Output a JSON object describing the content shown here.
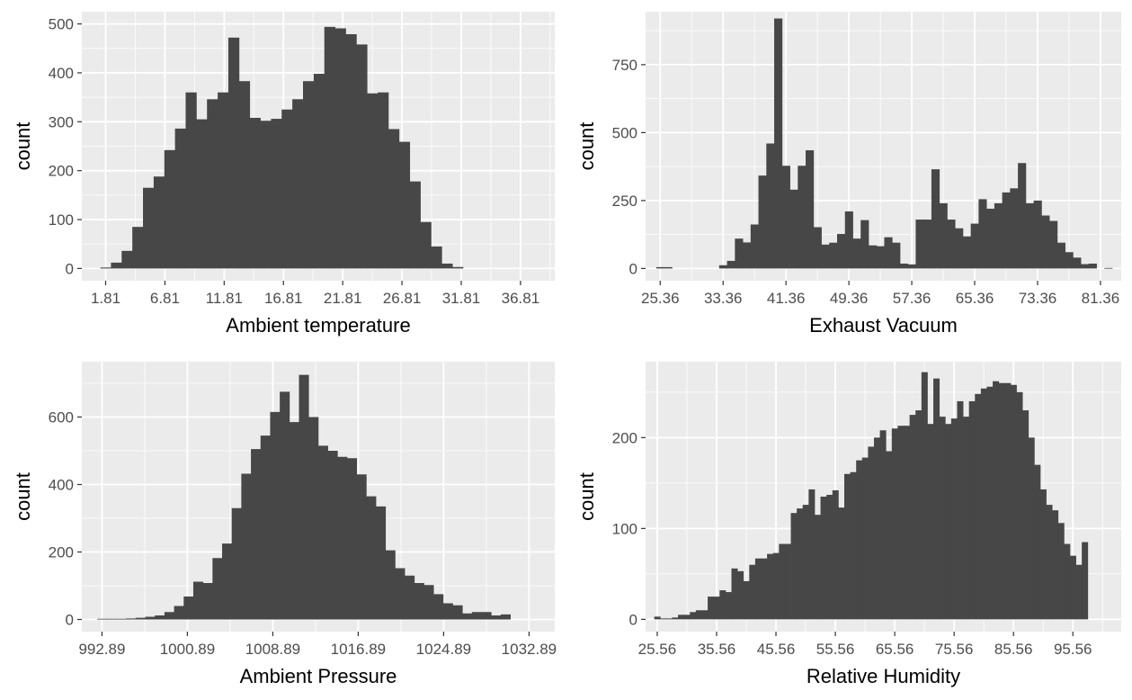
{
  "chart_data": [
    {
      "type": "bar",
      "xlabel": "Ambient temperature",
      "ylabel": "count",
      "xlim": [
        -0.2,
        39.7
      ],
      "ylim": [
        -25,
        525
      ],
      "x_ticks": [
        1.81,
        6.81,
        11.81,
        16.81,
        21.81,
        26.81,
        31.81,
        36.81
      ],
      "x_tick_labels": [
        "1.81",
        "6.81",
        "11.81",
        "16.81",
        "21.81",
        "26.81",
        "31.81",
        "36.81"
      ],
      "y_ticks": [
        0,
        100,
        200,
        300,
        400,
        500
      ],
      "y_tick_labels": [
        "0",
        "100",
        "200",
        "300",
        "400",
        "500"
      ],
      "bin_start": 1.81,
      "bin_width": 0.9,
      "values": [
        2,
        12,
        36,
        85,
        165,
        188,
        242,
        286,
        360,
        305,
        346,
        360,
        472,
        383,
        308,
        302,
        306,
        325,
        346,
        383,
        398,
        494,
        491,
        479,
        458,
        358,
        360,
        285,
        259,
        178,
        95,
        45,
        10,
        3
      ]
    },
    {
      "type": "bar",
      "xlabel": "Exhaust Vacuum",
      "ylabel": "count",
      "xlim": [
        23.5,
        84.0
      ],
      "ylim": [
        -45,
        945
      ],
      "x_ticks": [
        25.36,
        33.36,
        41.36,
        49.36,
        57.36,
        65.36,
        73.36,
        81.36
      ],
      "x_tick_labels": [
        "25.36",
        "33.36",
        "41.36",
        "49.36",
        "57.36",
        "65.36",
        "73.36",
        "81.36"
      ],
      "y_ticks": [
        0,
        250,
        500,
        750
      ],
      "y_tick_labels": [
        "0",
        "250",
        "500",
        "750"
      ],
      "bin_start": 25.36,
      "bin_width": 1.0,
      "values": [
        5,
        5,
        0,
        0,
        0,
        0,
        0,
        0,
        12,
        28,
        110,
        96,
        162,
        342,
        460,
        920,
        378,
        290,
        378,
        435,
        152,
        88,
        95,
        127,
        210,
        110,
        178,
        85,
        82,
        115,
        95,
        18,
        15,
        180,
        180,
        365,
        240,
        180,
        148,
        118,
        165,
        255,
        220,
        240,
        280,
        295,
        388,
        240,
        250,
        195,
        175,
        95,
        60,
        40,
        16,
        18,
        0,
        2
      ]
    },
    {
      "type": "bar",
      "xlabel": "Ambient Pressure",
      "ylabel": "count",
      "xlim": [
        991.0,
        1035.3
      ],
      "ylim": [
        -36,
        764
      ],
      "x_ticks": [
        992.89,
        1000.89,
        1008.89,
        1016.89,
        1024.89,
        1032.89
      ],
      "x_tick_labels": [
        "992.89",
        "1000.89",
        "1008.89",
        "1016.89",
        "1024.89",
        "1032.89"
      ],
      "y_ticks": [
        0,
        200,
        400,
        600
      ],
      "y_tick_labels": [
        "0",
        "200",
        "400",
        "600"
      ],
      "bin_start": 992.89,
      "bin_width": 0.9,
      "values": [
        2,
        2,
        2,
        3,
        5,
        8,
        12,
        22,
        40,
        68,
        112,
        108,
        182,
        225,
        330,
        432,
        505,
        545,
        615,
        675,
        585,
        725,
        600,
        515,
        500,
        482,
        478,
        430,
        365,
        335,
        205,
        152,
        130,
        108,
        102,
        75,
        48,
        42,
        18,
        22,
        22,
        12,
        15
      ]
    },
    {
      "type": "bar",
      "xlabel": "Relative Humidity",
      "ylabel": "count",
      "xlim": [
        23.6,
        103.7
      ],
      "ylim": [
        -13.5,
        283.5
      ],
      "x_ticks": [
        25.56,
        35.56,
        45.56,
        55.56,
        65.56,
        75.56,
        85.56,
        95.56
      ],
      "x_tick_labels": [
        "25.56",
        "35.56",
        "45.56",
        "55.56",
        "65.56",
        "75.56",
        "85.56",
        "95.56"
      ],
      "y_ticks": [
        0,
        100,
        200
      ],
      "y_tick_labels": [
        "0",
        "100",
        "200"
      ],
      "bin_start": 25.56,
      "bin_width": 1.0,
      "values": [
        3,
        1,
        1,
        2,
        5,
        5,
        8,
        10,
        10,
        25,
        25,
        32,
        30,
        56,
        53,
        42,
        60,
        67,
        67,
        72,
        73,
        83,
        83,
        117,
        122,
        126,
        143,
        115,
        135,
        137,
        142,
        123,
        160,
        162,
        175,
        178,
        190,
        200,
        208,
        185,
        210,
        213,
        213,
        225,
        230,
        272,
        215,
        265,
        223,
        215,
        221,
        240,
        223,
        240,
        248,
        254,
        256,
        262,
        260,
        260,
        258,
        250,
        230,
        200,
        170,
        143,
        126,
        120,
        106,
        83,
        70,
        60,
        85
      ]
    }
  ]
}
